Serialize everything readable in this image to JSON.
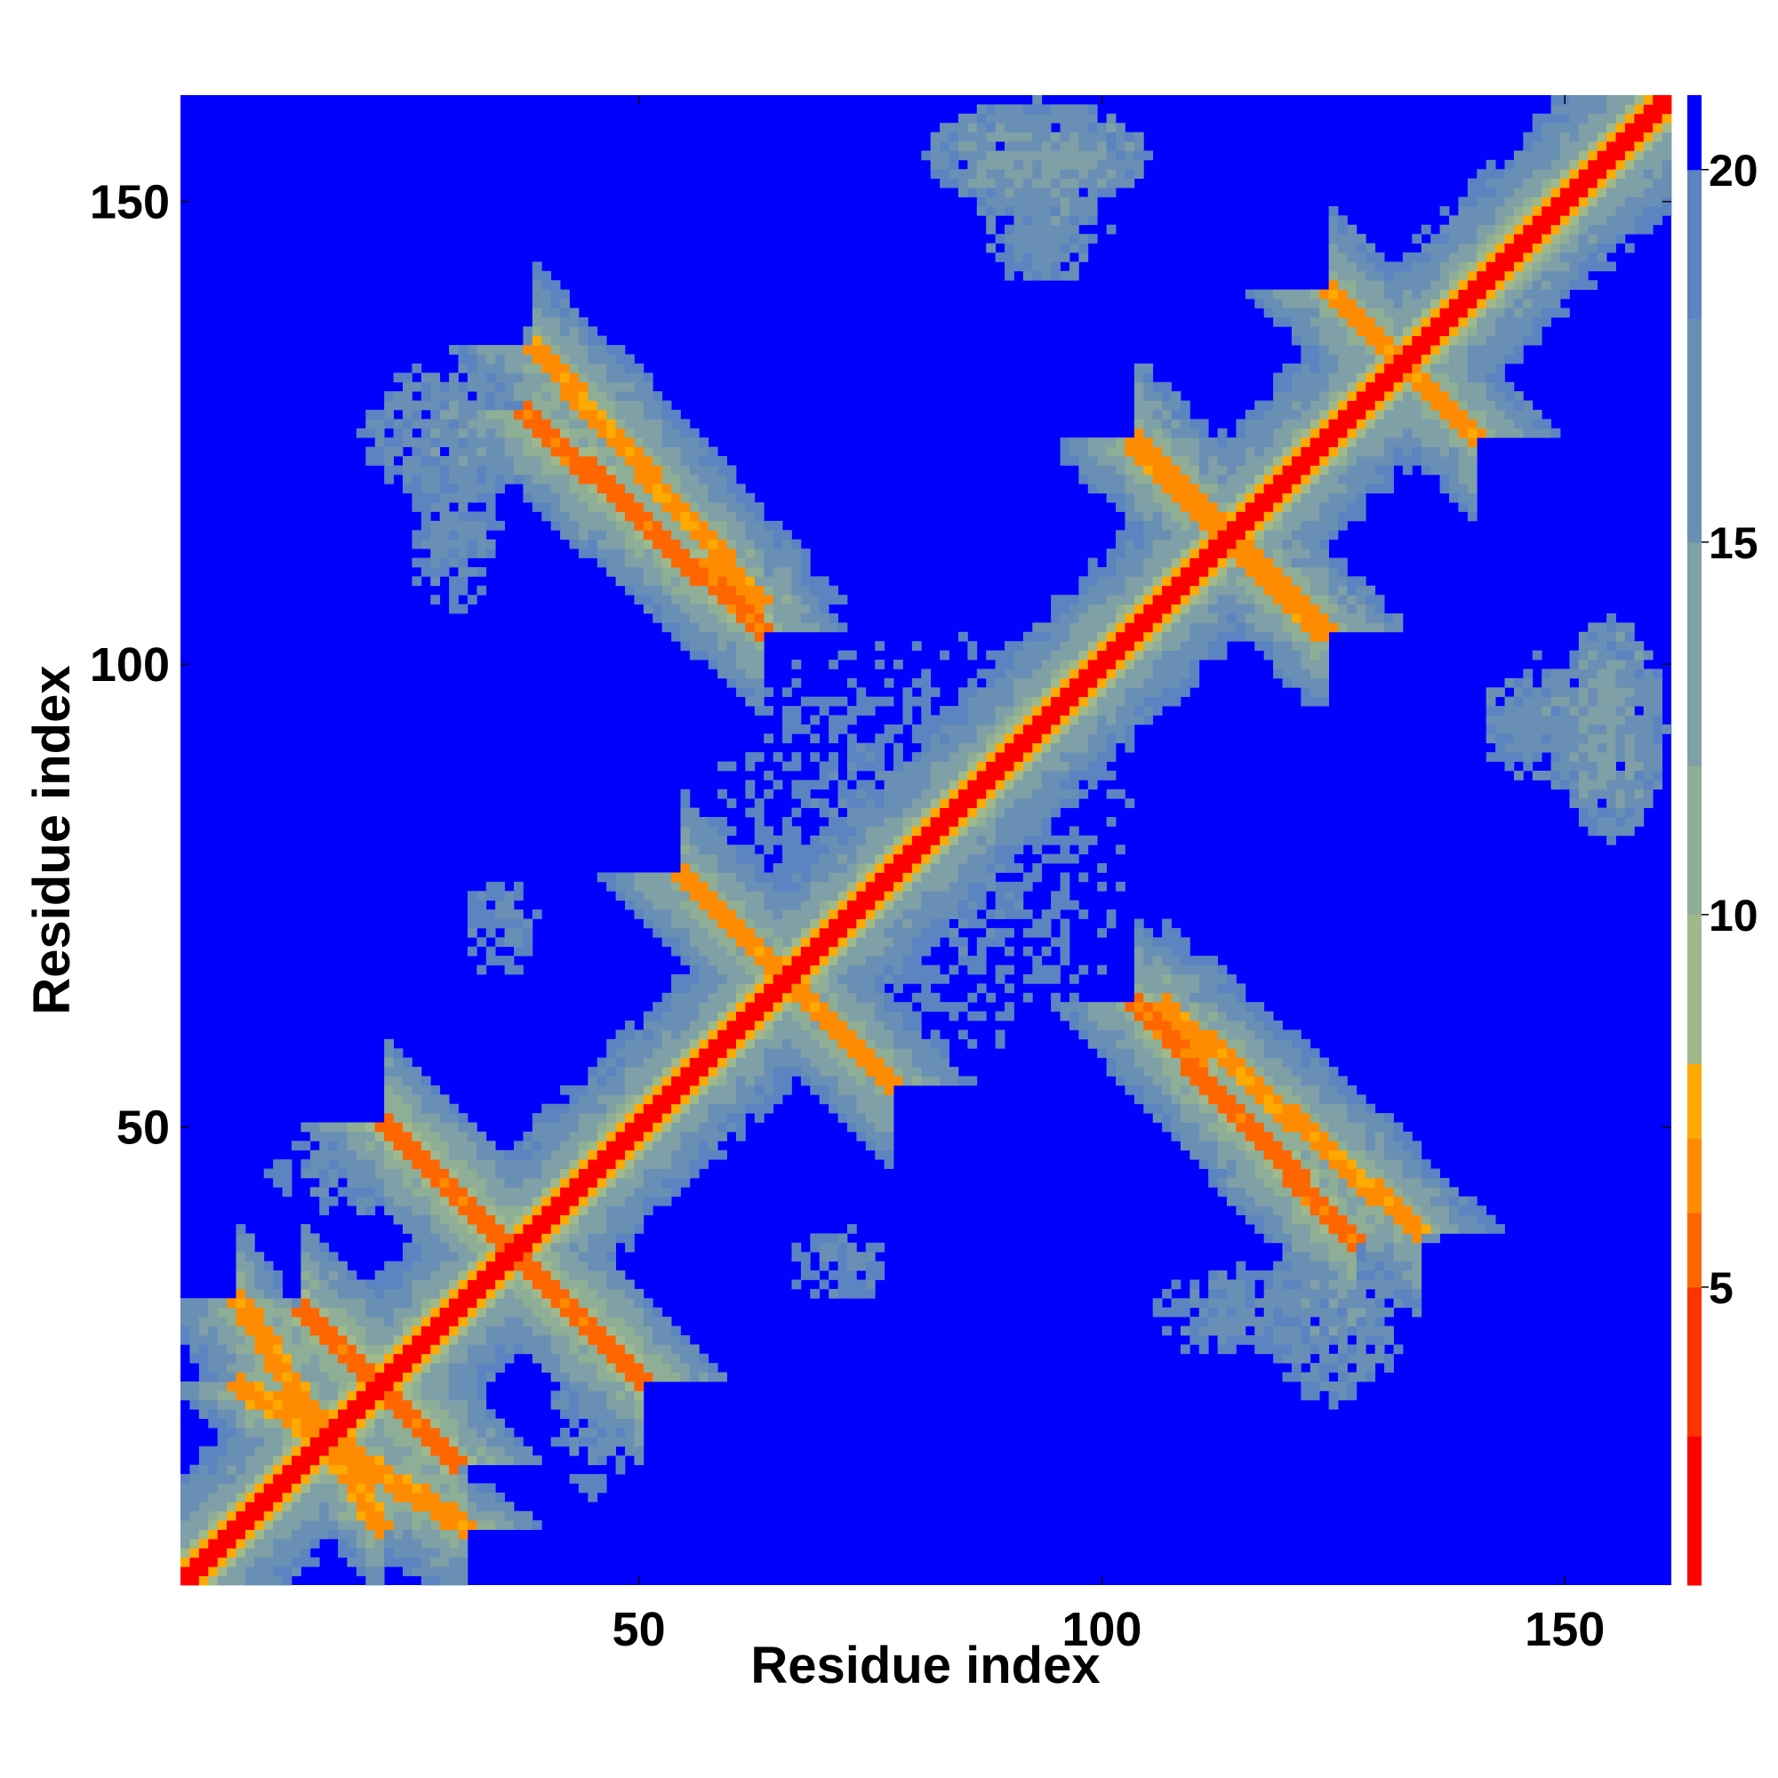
{
  "chart_data": {
    "type": "heatmap",
    "title": "",
    "xlabel": "Residue index",
    "ylabel": "Residue index",
    "xlim": [
      1,
      161
    ],
    "ylim": [
      1,
      161
    ],
    "xticks": [
      50,
      100,
      150
    ],
    "yticks": [
      50,
      100,
      150
    ],
    "colorbar": {
      "ticks": [
        5,
        10,
        15,
        20
      ],
      "range": [
        1,
        21
      ],
      "colors": [
        "#ff0000",
        "#ff3300",
        "#ff6600",
        "#ff8c00",
        "#ffaa00",
        "#9fb98c",
        "#8fae96",
        "#7ea0a6",
        "#6a8fb5",
        "#5b84c0",
        "#0000ff"
      ],
      "boundaries": [
        1,
        3,
        5,
        6,
        7,
        8,
        10,
        12,
        15,
        18,
        20,
        21
      ]
    },
    "background_value": 21,
    "main_diagonal": {
      "from": 1,
      "to": 161,
      "value": 2
    },
    "features": [
      {
        "kind": "antidiagonal",
        "from": [
          7,
          22
        ],
        "to": [
          31,
          7
        ],
        "value": 6
      },
      {
        "kind": "antidiagonal",
        "from": [
          14,
          30
        ],
        "to": [
          30,
          14
        ],
        "value": 5
      },
      {
        "kind": "antidiagonal",
        "from": [
          23,
          50
        ],
        "to": [
          50,
          23
        ],
        "value": 5
      },
      {
        "kind": "antidiagonal",
        "from": [
          38,
          127
        ],
        "to": [
          63,
          104
        ],
        "value": 5
      },
      {
        "kind": "antidiagonal",
        "from": [
          55,
          77
        ],
        "to": [
          77,
          55
        ],
        "value": 6
      },
      {
        "kind": "antidiagonal",
        "from": [
          104,
          123
        ],
        "to": [
          124,
          104
        ],
        "value": 6
      },
      {
        "kind": "antidiagonal",
        "from": [
          107,
          63
        ],
        "to": [
          134,
          39
        ],
        "value": 6
      },
      {
        "kind": "antidiagonal",
        "from": [
          125,
          140
        ],
        "to": [
          140,
          125
        ],
        "value": 6
      },
      {
        "kind": "diagonal",
        "from": [
          142,
          145
        ],
        "to": [
          161,
          162
        ],
        "value": 11
      },
      {
        "kind": "blob",
        "center": [
          93,
          155
        ],
        "radius": [
          12,
          6
        ],
        "value": 12
      },
      {
        "kind": "blob",
        "center": [
          155,
          93
        ],
        "radius": [
          6,
          12
        ],
        "value": 12
      },
      {
        "kind": "blob",
        "center": [
          150,
          95
        ],
        "radius": [
          9,
          7
        ],
        "value": 14
      },
      {
        "kind": "blob",
        "center": [
          93,
          150
        ],
        "radius": [
          7,
          9
        ],
        "value": 14
      },
      {
        "kind": "blob",
        "center": [
          30,
          125
        ],
        "radius": [
          10,
          8
        ],
        "value": 14
      },
      {
        "kind": "blob",
        "center": [
          125,
          30
        ],
        "radius": [
          8,
          10
        ],
        "value": 14
      },
      {
        "kind": "blob",
        "center": [
          80,
          80
        ],
        "radius": [
          28,
          28
        ],
        "value": 17
      },
      {
        "kind": "blob",
        "center": [
          20,
          45
        ],
        "radius": [
          10,
          5
        ],
        "value": 15
      },
      {
        "kind": "blob",
        "center": [
          45,
          20
        ],
        "radius": [
          5,
          10
        ],
        "value": 15
      },
      {
        "kind": "blob",
        "center": [
          115,
          30
        ],
        "radius": [
          10,
          5
        ],
        "value": 15
      },
      {
        "kind": "blob",
        "center": [
          30,
          115
        ],
        "radius": [
          5,
          10
        ],
        "value": 15
      },
      {
        "kind": "blob",
        "center": [
          72,
          35
        ],
        "radius": [
          6,
          5
        ],
        "value": 16
      },
      {
        "kind": "blob",
        "center": [
          35,
          72
        ],
        "radius": [
          5,
          6
        ],
        "value": 16
      }
    ]
  }
}
